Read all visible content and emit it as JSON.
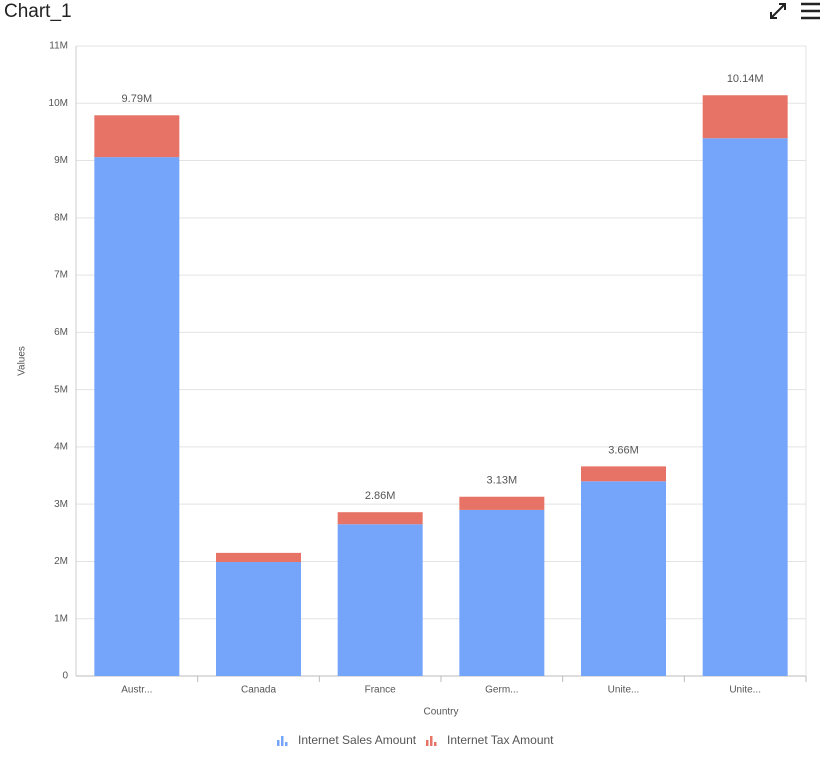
{
  "chart_data": {
    "type": "stacked_bar",
    "title": "Chart_1",
    "x_label": "Country",
    "y_label": "Values",
    "categories": [
      "Austr...",
      "Canada",
      "France",
      "Germ...",
      "Unite...",
      "Unite..."
    ],
    "series": [
      {
        "name": "Internet Sales Amount",
        "color": "#75a5fa",
        "values": [
          9060000,
          1990000,
          2650000,
          2900000,
          3400000,
          9390000
        ]
      },
      {
        "name": "Internet Tax Amount",
        "color": "#e77366",
        "values": [
          730000,
          160000,
          210000,
          230000,
          260000,
          750000
        ]
      }
    ],
    "total_labels": [
      "9.79M",
      null,
      "2.86M",
      "3.13M",
      "3.66M",
      "10.14M"
    ],
    "ylim": [
      0,
      11000000
    ],
    "yticks": [
      0,
      {
        "value": 1000000,
        "label": "1M"
      },
      {
        "value": 2000000,
        "label": "2M"
      },
      {
        "value": 3000000,
        "label": "3M"
      },
      {
        "value": 4000000,
        "label": "4M"
      },
      {
        "value": 5000000,
        "label": "5M"
      },
      {
        "value": 6000000,
        "label": "6M"
      },
      {
        "value": 7000000,
        "label": "7M"
      },
      {
        "value": 8000000,
        "label": "8M"
      },
      {
        "value": 9000000,
        "label": "9M"
      },
      {
        "value": 10000000,
        "label": "10M"
      },
      {
        "value": 11000000,
        "label": "11M"
      }
    ],
    "grid": true,
    "legend": "bottom"
  }
}
